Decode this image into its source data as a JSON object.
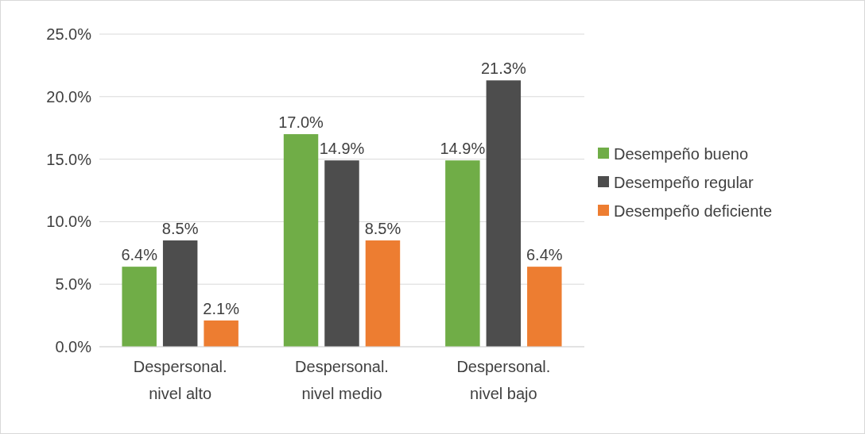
{
  "chart_data": {
    "type": "bar",
    "categories": [
      "Despersonal. nivel alto",
      "Despersonal. nivel medio",
      "Despersonal. nivel bajo"
    ],
    "series": [
      {
        "name": "Desempeño bueno",
        "color": "#70ad47",
        "values": [
          6.4,
          17.0,
          14.9
        ],
        "value_labels": [
          "6.4%",
          "17.0%",
          "14.9%"
        ]
      },
      {
        "name": "Desempeño regular",
        "color": "#4d4d4d",
        "values": [
          8.5,
          14.9,
          21.3
        ],
        "value_labels": [
          "8.5%",
          "14.9%",
          "21.3%"
        ]
      },
      {
        "name": "Desempeño deficiente",
        "color": "#ed7d31",
        "values": [
          2.1,
          8.5,
          6.4
        ],
        "value_labels": [
          "2.1%",
          "8.5%",
          "6.4%"
        ]
      }
    ],
    "ylim": [
      0,
      25
    ],
    "yticks": [
      {
        "value": 0,
        "label": "0.0%"
      },
      {
        "value": 5,
        "label": "5.0%"
      },
      {
        "value": 10,
        "label": "10.0%"
      },
      {
        "value": 15,
        "label": "15.0%"
      },
      {
        "value": 20,
        "label": "20.0%"
      },
      {
        "value": 25,
        "label": "25.0%"
      }
    ],
    "grid": "y",
    "legend": "right"
  }
}
